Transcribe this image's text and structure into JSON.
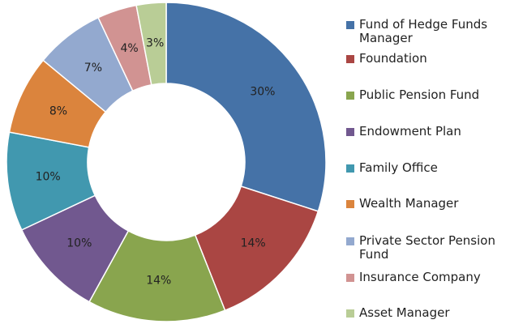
{
  "chart_data": {
    "type": "donut",
    "categories": [
      "Fund of Hedge Funds Manager",
      "Foundation",
      "Public Pension Fund",
      "Endowment Plan",
      "Family Office",
      "Wealth Manager",
      "Private Sector Pension Fund",
      "Insurance Company",
      "Asset Manager"
    ],
    "values": [
      30,
      14,
      14,
      10,
      10,
      8,
      7,
      4,
      3
    ],
    "value_labels": [
      "30%",
      "14%",
      "14%",
      "10%",
      "10%",
      "8%",
      "7%",
      "4%",
      "3%"
    ],
    "colors": [
      "#4572a7",
      "#aa4643",
      "#89a54e",
      "#71588f",
      "#4198af",
      "#db843d",
      "#93a9cf",
      "#d19392",
      "#b9cd96"
    ],
    "legend": "right"
  }
}
